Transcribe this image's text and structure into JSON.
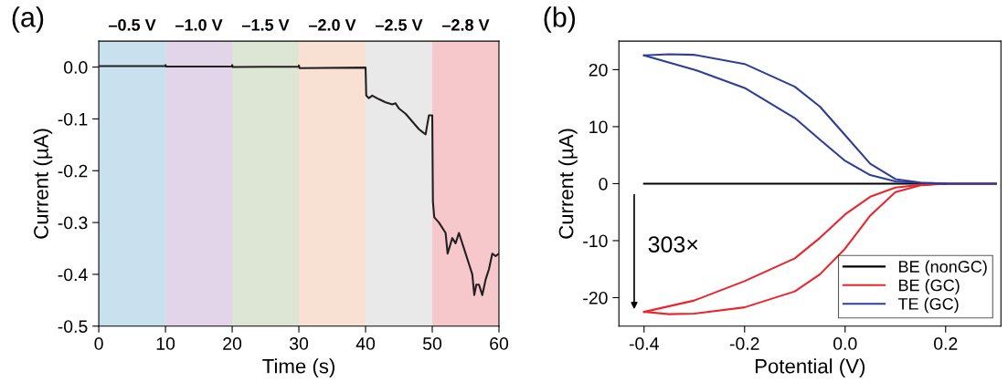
{
  "chart_data": [
    {
      "type": "line",
      "title": "(a)",
      "xlabel": "Time (s)",
      "ylabel": "Current (µA)",
      "xlim": [
        0,
        60
      ],
      "xticks": [
        0,
        10,
        20,
        30,
        40,
        50,
        60
      ],
      "ylim": [
        -0.5,
        0.05
      ],
      "yticks": [
        -0.5,
        -0.4,
        -0.3,
        -0.2,
        -0.1,
        {
          "value": 0,
          "label": "0.0"
        }
      ],
      "grid": false,
      "legend": false,
      "marker": "none",
      "line_style": "solid",
      "bands": [
        {
          "axis": "x",
          "from": 0,
          "to": 10,
          "label": "–0.5 V",
          "color": "#c9e0ef"
        },
        {
          "axis": "x",
          "from": 10,
          "to": 20,
          "label": "–1.0 V",
          "color": "#e2d5ea"
        },
        {
          "axis": "x",
          "from": 20,
          "to": 30,
          "label": "–1.5 V",
          "color": "#dde6d4"
        },
        {
          "axis": "x",
          "from": 30,
          "to": 40,
          "label": "–2.0 V",
          "color": "#f8e0d3"
        },
        {
          "axis": "x",
          "from": 40,
          "to": 50,
          "label": "–2.5 V",
          "color": "#e9e9e9"
        },
        {
          "axis": "x",
          "from": 50,
          "to": 60,
          "label": "–2.8 V",
          "color": "#f7c8cb"
        }
      ],
      "series": [
        {
          "color": "#231f20",
          "x": [
            0,
            10,
            10,
            10.1,
            20,
            20,
            20.1,
            30,
            30,
            30.1,
            40,
            40.1,
            40.5,
            41,
            42,
            43,
            44,
            44.5,
            45,
            46,
            47,
            48,
            48.5,
            49,
            49.2,
            49.5,
            50,
            50.1,
            50.3,
            51,
            52,
            52.3,
            53,
            53.5,
            54,
            55,
            55.5,
            56,
            56.3,
            56.6,
            57,
            57.5,
            58,
            58.5,
            59,
            59.5,
            60
          ],
          "values": [
            0.002,
            0.002,
            0.004,
            0.001,
            0.001,
            0.004,
            0.0,
            0.001,
            0.003,
            -0.002,
            -0.001,
            -0.055,
            -0.06,
            -0.055,
            -0.062,
            -0.068,
            -0.072,
            -0.07,
            -0.08,
            -0.09,
            -0.105,
            -0.12,
            -0.125,
            -0.13,
            -0.115,
            -0.093,
            -0.093,
            -0.26,
            -0.29,
            -0.3,
            -0.32,
            -0.36,
            -0.33,
            -0.34,
            -0.32,
            -0.36,
            -0.38,
            -0.4,
            -0.44,
            -0.42,
            -0.42,
            -0.44,
            -0.41,
            -0.39,
            -0.36,
            -0.365,
            -0.36
          ]
        }
      ]
    },
    {
      "type": "line",
      "title": "(b)",
      "xlabel": "Potential (V)",
      "ylabel": "Current (µA)",
      "xlim": [
        -0.45,
        0.31
      ],
      "xticks": [
        -0.4,
        -0.2,
        {
          "value": 0.0,
          "label": "0.0"
        },
        0.2
      ],
      "ylim": [
        -25,
        25
      ],
      "yticks": [
        -20,
        -10,
        0,
        10,
        20
      ],
      "grid": false,
      "legend": "bottom right",
      "marker": "none",
      "line_style": "solid",
      "annotations": [
        "303×"
      ],
      "series": [
        {
          "name": "BE (nonGC)",
          "color": "#000000",
          "x": [
            -0.4,
            0.3
          ],
          "values": [
            0,
            0
          ]
        },
        {
          "name": "BE (GC)",
          "color": "#e8262b",
          "x": [
            -0.4,
            -0.35,
            -0.3,
            -0.2,
            -0.1,
            -0.05,
            0.0,
            0.05,
            0.1,
            0.15,
            0.2,
            0.3
          ],
          "values": [
            -22.5,
            -22.9,
            -22.8,
            -21.7,
            -18.9,
            -15.9,
            -11.4,
            -5.6,
            -1.5,
            -0.3,
            0,
            0
          ]
        },
        {
          "color": "#e8262b",
          "x": [
            -0.4,
            -0.3,
            -0.2,
            -0.1,
            -0.05,
            0.0,
            0.05,
            0.1,
            0.15,
            0.2
          ],
          "values": [
            -22.5,
            -20.5,
            -17.1,
            -13.1,
            -9.5,
            -5.4,
            -2.3,
            -0.7,
            -0.2,
            0
          ]
        },
        {
          "name": "TE (GC)",
          "color": "#2e3d9a",
          "x": [
            -0.4,
            -0.35,
            -0.3,
            -0.2,
            -0.1,
            -0.05,
            0.0,
            0.05,
            0.1,
            0.15,
            0.2,
            0.3
          ],
          "values": [
            22.5,
            22.7,
            22.6,
            21,
            17,
            13.5,
            8.5,
            3.5,
            0.8,
            0.2,
            0,
            0
          ]
        },
        {
          "color": "#2e3d9a",
          "x": [
            -0.4,
            -0.3,
            -0.2,
            -0.1,
            -0.05,
            0.0,
            0.05,
            0.1,
            0.15,
            0.2
          ],
          "values": [
            22.5,
            20,
            16.8,
            11.5,
            7.7,
            4,
            1.5,
            0.4,
            0.1,
            0
          ]
        }
      ]
    }
  ]
}
